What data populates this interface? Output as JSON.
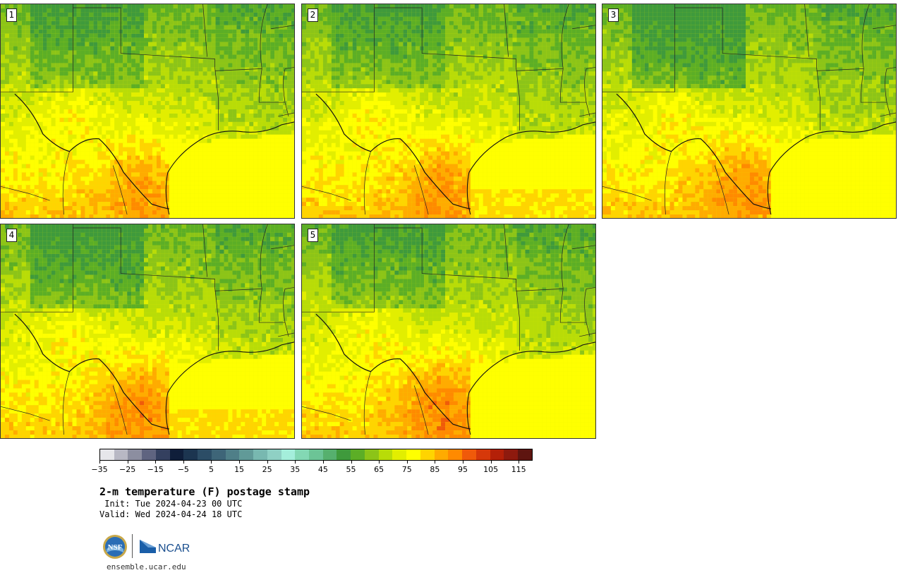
{
  "stamps": [
    {
      "label": "1"
    },
    {
      "label": "2"
    },
    {
      "label": "3"
    },
    {
      "label": "4"
    },
    {
      "label": "5"
    }
  ],
  "colorbar": {
    "colors": [
      "#e6e6ea",
      "#b8b8c4",
      "#8c8ea0",
      "#5f6480",
      "#34405f",
      "#0f1e3a",
      "#1c3550",
      "#2c4d66",
      "#3e6578",
      "#4f7f88",
      "#619a98",
      "#78b8b0",
      "#8fd0c4",
      "#a4eedb",
      "#83d8b4",
      "#6cc496",
      "#56b06e",
      "#3f9a3c",
      "#5cae26",
      "#8cc418",
      "#b8dc08",
      "#e2ee00",
      "#ffff00",
      "#ffd400",
      "#ffab00",
      "#ff8a00",
      "#f05a0a",
      "#d6380a",
      "#b42008",
      "#8e1a0e",
      "#5e1510"
    ],
    "tick_labels": [
      "−35",
      "−25",
      "−15",
      "−5",
      "5",
      "15",
      "25",
      "35",
      "45",
      "55",
      "65",
      "75",
      "85",
      "95",
      "105",
      "115"
    ]
  },
  "caption": {
    "title": "2-m temperature (F) postage stamp",
    "init": " Init: Tue 2024-04-23 00 UTC",
    "valid": "Valid: Wed 2024-04-24 18 UTC"
  },
  "logos": {
    "nsf_text": "NSF",
    "ncar_text": "NCAR",
    "site_url": "ensemble.ucar.edu"
  }
}
